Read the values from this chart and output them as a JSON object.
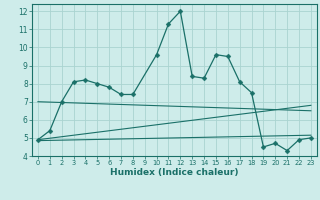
{
  "title": "",
  "xlabel": "Humidex (Indice chaleur)",
  "ylabel": "",
  "bg_color": "#ceecea",
  "grid_color": "#aad4d0",
  "line_color": "#1a7068",
  "xlim": [
    -0.5,
    23.5
  ],
  "ylim": [
    4,
    12.4
  ],
  "xticks": [
    0,
    1,
    2,
    3,
    4,
    5,
    6,
    7,
    8,
    9,
    10,
    11,
    12,
    13,
    14,
    15,
    16,
    17,
    18,
    19,
    20,
    21,
    22,
    23
  ],
  "yticks": [
    4,
    5,
    6,
    7,
    8,
    9,
    10,
    11,
    12
  ],
  "series1_x": [
    0,
    1,
    2,
    3,
    4,
    5,
    6,
    7,
    8,
    10,
    11,
    12,
    13,
    14,
    15,
    16,
    17,
    18,
    19,
    20,
    21,
    22,
    23
  ],
  "series1_y": [
    4.9,
    5.4,
    7.0,
    8.1,
    8.2,
    8.0,
    7.8,
    7.4,
    7.4,
    9.6,
    11.3,
    12.0,
    8.4,
    8.3,
    9.6,
    9.5,
    8.1,
    7.5,
    4.5,
    4.7,
    4.3,
    4.9,
    5.0
  ],
  "series2_x": [
    0,
    23
  ],
  "series2_y": [
    7.0,
    6.5
  ],
  "series3_x": [
    0,
    23
  ],
  "series3_y": [
    4.9,
    6.8
  ],
  "series4_x": [
    0,
    23
  ],
  "series4_y": [
    4.85,
    5.15
  ]
}
